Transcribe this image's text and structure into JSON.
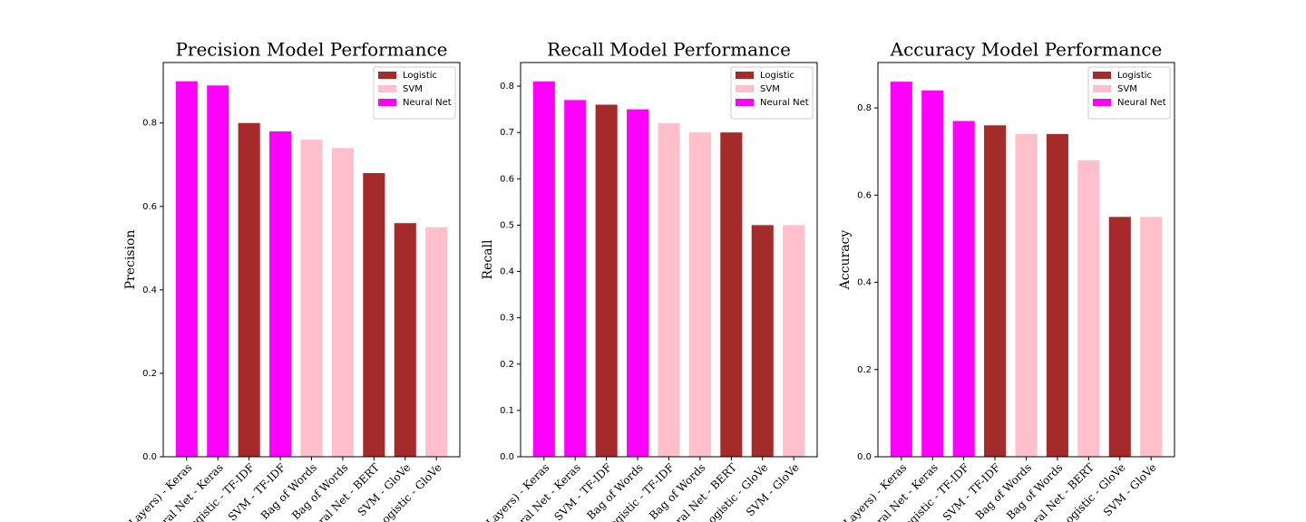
{
  "chart_data": [
    {
      "type": "bar",
      "title": "Precision Model Performance",
      "ylabel": "Precision",
      "categories": [
        "Layers) - Keras",
        "ral Net - Keras",
        "ogistic - TF-IDF",
        "SVM - TF-IDF",
        "Bag of Words",
        "Bag of Words",
        "ral Net - BERT",
        "SVM - GloVe",
        "ogistic - GloVe"
      ],
      "values": [
        0.9,
        0.89,
        0.8,
        0.78,
        0.76,
        0.74,
        0.68,
        0.56,
        0.55
      ],
      "colors": [
        "#ff00ff",
        "#ff00ff",
        "#a52a2a",
        "#ff00ff",
        "#ffc0cb",
        "#ffc0cb",
        "#a52a2a",
        "#a52a2a",
        "#ffc0cb"
      ],
      "legend": [
        {
          "name": "Logistic",
          "color": "#a52a2a"
        },
        {
          "name": "SVM",
          "color": "#ffc0cb"
        },
        {
          "name": "Neural Net",
          "color": "#ff00ff"
        }
      ],
      "legend_loc": "upper right",
      "ylim": [
        0,
        0.945
      ],
      "yticks": [
        {
          "value": 0,
          "label": "0.0"
        },
        0.2,
        0.4,
        0.6,
        0.8
      ]
    },
    {
      "type": "bar",
      "title": "Recall Model Performance",
      "ylabel": "Recall",
      "categories": [
        "Layers) - Keras",
        "ral Net - Keras",
        "SVM - TF-IDF",
        "Bag of Words",
        "ogistic - TF-IDF",
        "Bag of Words",
        "ral Net - BERT",
        "ogistic - GloVe",
        "SVM - GloVe"
      ],
      "values": [
        0.81,
        0.77,
        0.76,
        0.75,
        0.72,
        0.7,
        0.7,
        0.5,
        0.5
      ],
      "colors": [
        "#ff00ff",
        "#ff00ff",
        "#a52a2a",
        "#ff00ff",
        "#ffc0cb",
        "#ffc0cb",
        "#a52a2a",
        "#a52a2a",
        "#ffc0cb"
      ],
      "legend": [
        {
          "name": "Logistic",
          "color": "#a52a2a"
        },
        {
          "name": "SVM",
          "color": "#ffc0cb"
        },
        {
          "name": "Neural Net",
          "color": "#ff00ff"
        }
      ],
      "legend_loc": "upper right",
      "ylim": [
        0,
        0.851
      ],
      "yticks": [
        {
          "value": 0,
          "label": "0.0"
        },
        0.1,
        0.2,
        0.3,
        0.4,
        0.5,
        0.6,
        0.7,
        0.8
      ]
    },
    {
      "type": "bar",
      "title": "Accuracy Model Performance",
      "ylabel": "Accuracy",
      "categories": [
        "Layers) - Keras",
        "ral Net - Keras",
        "ogistic - TF-IDF",
        "SVM - TF-IDF",
        "Bag of Words",
        "Bag of Words",
        "ral Net - BERT",
        "ogistic - GloVe",
        "SVM - GloVe"
      ],
      "values": [
        0.86,
        0.84,
        0.77,
        0.76,
        0.74,
        0.74,
        0.68,
        0.55,
        0.55
      ],
      "colors": [
        "#ff00ff",
        "#ff00ff",
        "#ff00ff",
        "#a52a2a",
        "#ffc0cb",
        "#a52a2a",
        "#ffc0cb",
        "#a52a2a",
        "#ffc0cb"
      ],
      "legend": [
        {
          "name": "Logistic",
          "color": "#a52a2a"
        },
        {
          "name": "SVM",
          "color": "#ffc0cb"
        },
        {
          "name": "Neural Net",
          "color": "#ff00ff"
        }
      ],
      "legend_loc": "upper right",
      "ylim": [
        0,
        0.904
      ],
      "yticks": [
        {
          "value": 0,
          "label": "0.0"
        },
        0.2,
        0.4,
        0.6,
        0.8
      ]
    }
  ]
}
